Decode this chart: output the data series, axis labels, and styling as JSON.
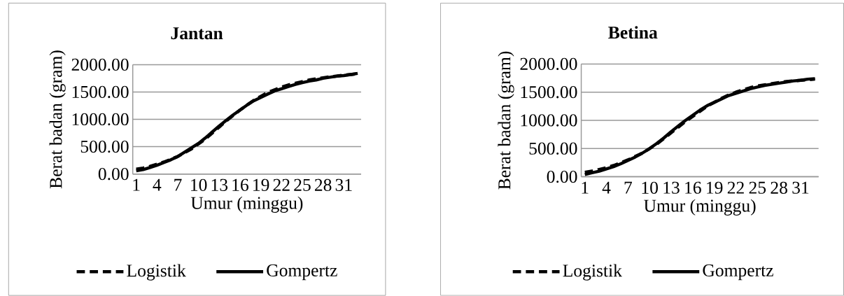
{
  "chart_data": [
    {
      "type": "line",
      "title": "Jantan",
      "xlabel": "Umur (minggu)",
      "ylabel": "Berat badan (gram)",
      "categories": [
        "1",
        null,
        null,
        "4",
        null,
        null,
        "7",
        null,
        null,
        "10",
        null,
        null,
        "13",
        null,
        null,
        "16",
        null,
        null,
        "19",
        null,
        null,
        "22",
        null,
        null,
        "25",
        null,
        null,
        "28",
        null,
        null,
        "31",
        null,
        null
      ],
      "series": [
        {
          "name": "Logistik",
          "color": "#000000",
          "line_style": "dashed",
          "values": [
            90,
            110,
            140,
            180,
            220,
            270,
            320,
            390,
            460,
            550,
            640,
            750,
            860,
            970,
            1070,
            1170,
            1260,
            1350,
            1420,
            1490,
            1540,
            1590,
            1630,
            1660,
            1690,
            1720,
            1740,
            1760,
            1780,
            1790,
            1810,
            1820,
            1830
          ]
        },
        {
          "name": "Gompertz",
          "color": "#000000",
          "line_style": "solid",
          "values": [
            60,
            80,
            120,
            160,
            210,
            260,
            320,
            400,
            480,
            560,
            660,
            770,
            880,
            980,
            1080,
            1170,
            1260,
            1340,
            1400,
            1460,
            1520,
            1560,
            1600,
            1640,
            1670,
            1700,
            1720,
            1750,
            1770,
            1790,
            1800,
            1820,
            1840
          ]
        }
      ],
      "ylim": [
        0,
        2000
      ],
      "yticks": [
        {
          "value": 0,
          "label": "0.00"
        },
        {
          "value": 500,
          "label": "500.00"
        },
        {
          "value": 1000,
          "label": "1000.00"
        },
        {
          "value": 1500,
          "label": "1500.00"
        },
        {
          "value": 2000,
          "label": "2000.00"
        }
      ],
      "grid": "y",
      "legend": "bottom"
    },
    {
      "type": "line",
      "title": "Betina",
      "xlabel": "Umur (minggu)",
      "ylabel": "Berat badan (gram)",
      "categories": [
        "1",
        null,
        null,
        "4",
        null,
        null,
        "7",
        null,
        null,
        "10",
        null,
        null,
        "13",
        null,
        null,
        "16",
        null,
        null,
        "19",
        null,
        null,
        "22",
        null,
        null,
        "25",
        null,
        null,
        "28",
        null,
        null,
        "31",
        null,
        null
      ],
      "series": [
        {
          "name": "Logistik",
          "color": "#000000",
          "line_style": "dashed",
          "values": [
            80,
            100,
            130,
            160,
            200,
            250,
            300,
            360,
            420,
            500,
            580,
            680,
            780,
            880,
            980,
            1070,
            1160,
            1250,
            1320,
            1390,
            1450,
            1500,
            1540,
            1580,
            1610,
            1630,
            1650,
            1670,
            1690,
            1700,
            1710,
            1720,
            1730
          ]
        },
        {
          "name": "Gompertz",
          "color": "#000000",
          "line_style": "solid",
          "values": [
            40,
            70,
            100,
            140,
            180,
            230,
            290,
            350,
            420,
            500,
            590,
            690,
            800,
            900,
            1000,
            1090,
            1180,
            1260,
            1320,
            1380,
            1440,
            1480,
            1520,
            1560,
            1590,
            1620,
            1640,
            1660,
            1680,
            1700,
            1710,
            1730,
            1740
          ]
        }
      ],
      "ylim": [
        0,
        2000
      ],
      "yticks": [
        {
          "value": 0,
          "label": "0.00"
        },
        {
          "value": 500,
          "label": "500.00"
        },
        {
          "value": 1000,
          "label": "1000.00"
        },
        {
          "value": 1500,
          "label": "1500.00"
        },
        {
          "value": 2000,
          "label": "2000.00"
        }
      ],
      "grid": "y",
      "legend": "bottom"
    }
  ]
}
